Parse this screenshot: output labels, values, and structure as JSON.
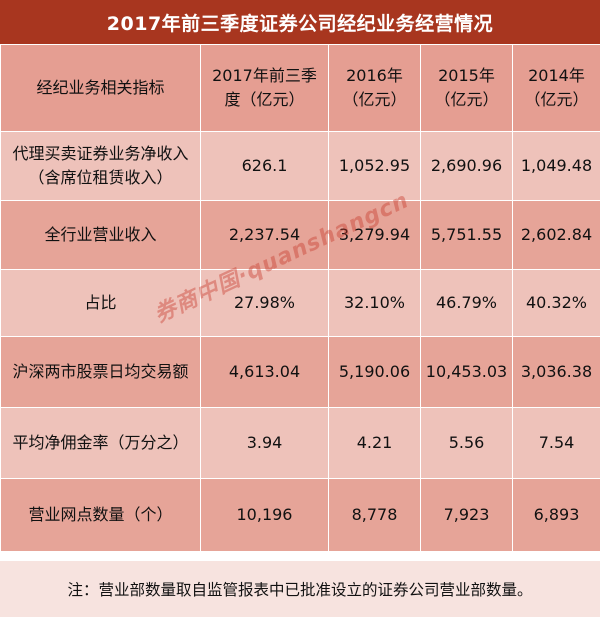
{
  "title": "2017年前三季度证券公司经纪业务经营情况",
  "headers": [
    "经纪业务相关指标",
    "2017年前三季度（亿元）",
    "2016年（亿元）",
    "2015年（亿元）",
    "2014年（亿元）"
  ],
  "rows": [
    {
      "label": "代理买卖证券业务净收入（含席位租赁收入）",
      "values": [
        "626.1",
        "1,052.95",
        "2,690.96",
        "1,049.48"
      ]
    },
    {
      "label": "全行业营业收入",
      "values": [
        "2,237.54",
        "3,279.94",
        "5,751.55",
        "2,602.84"
      ]
    },
    {
      "label": "占比",
      "values": [
        "27.98%",
        "32.10%",
        "46.79%",
        "40.32%"
      ]
    },
    {
      "label": "沪深两市股票日均交易额",
      "values": [
        "4,613.04",
        "5,190.06",
        "10,453.03",
        "3,036.38"
      ]
    },
    {
      "label": "平均净佣金率（万分之）",
      "values": [
        "3.94",
        "4.21",
        "5.56",
        "7.54"
      ]
    },
    {
      "label": "营业网点数量（个）",
      "values": [
        "10,196",
        "8,778",
        "7,923",
        "6,893"
      ]
    }
  ],
  "note": "注：营业部数量取自监管报表中已批准设立的证券公司营业部数量。",
  "watermark": "券商中国·quanshangcn",
  "colors": {
    "title_bg": "#a8361f",
    "header_bg": "#e59e92",
    "row_light": "#eec2ba",
    "row_dark": "#e6a498",
    "note_bg": "#f7e3df"
  }
}
